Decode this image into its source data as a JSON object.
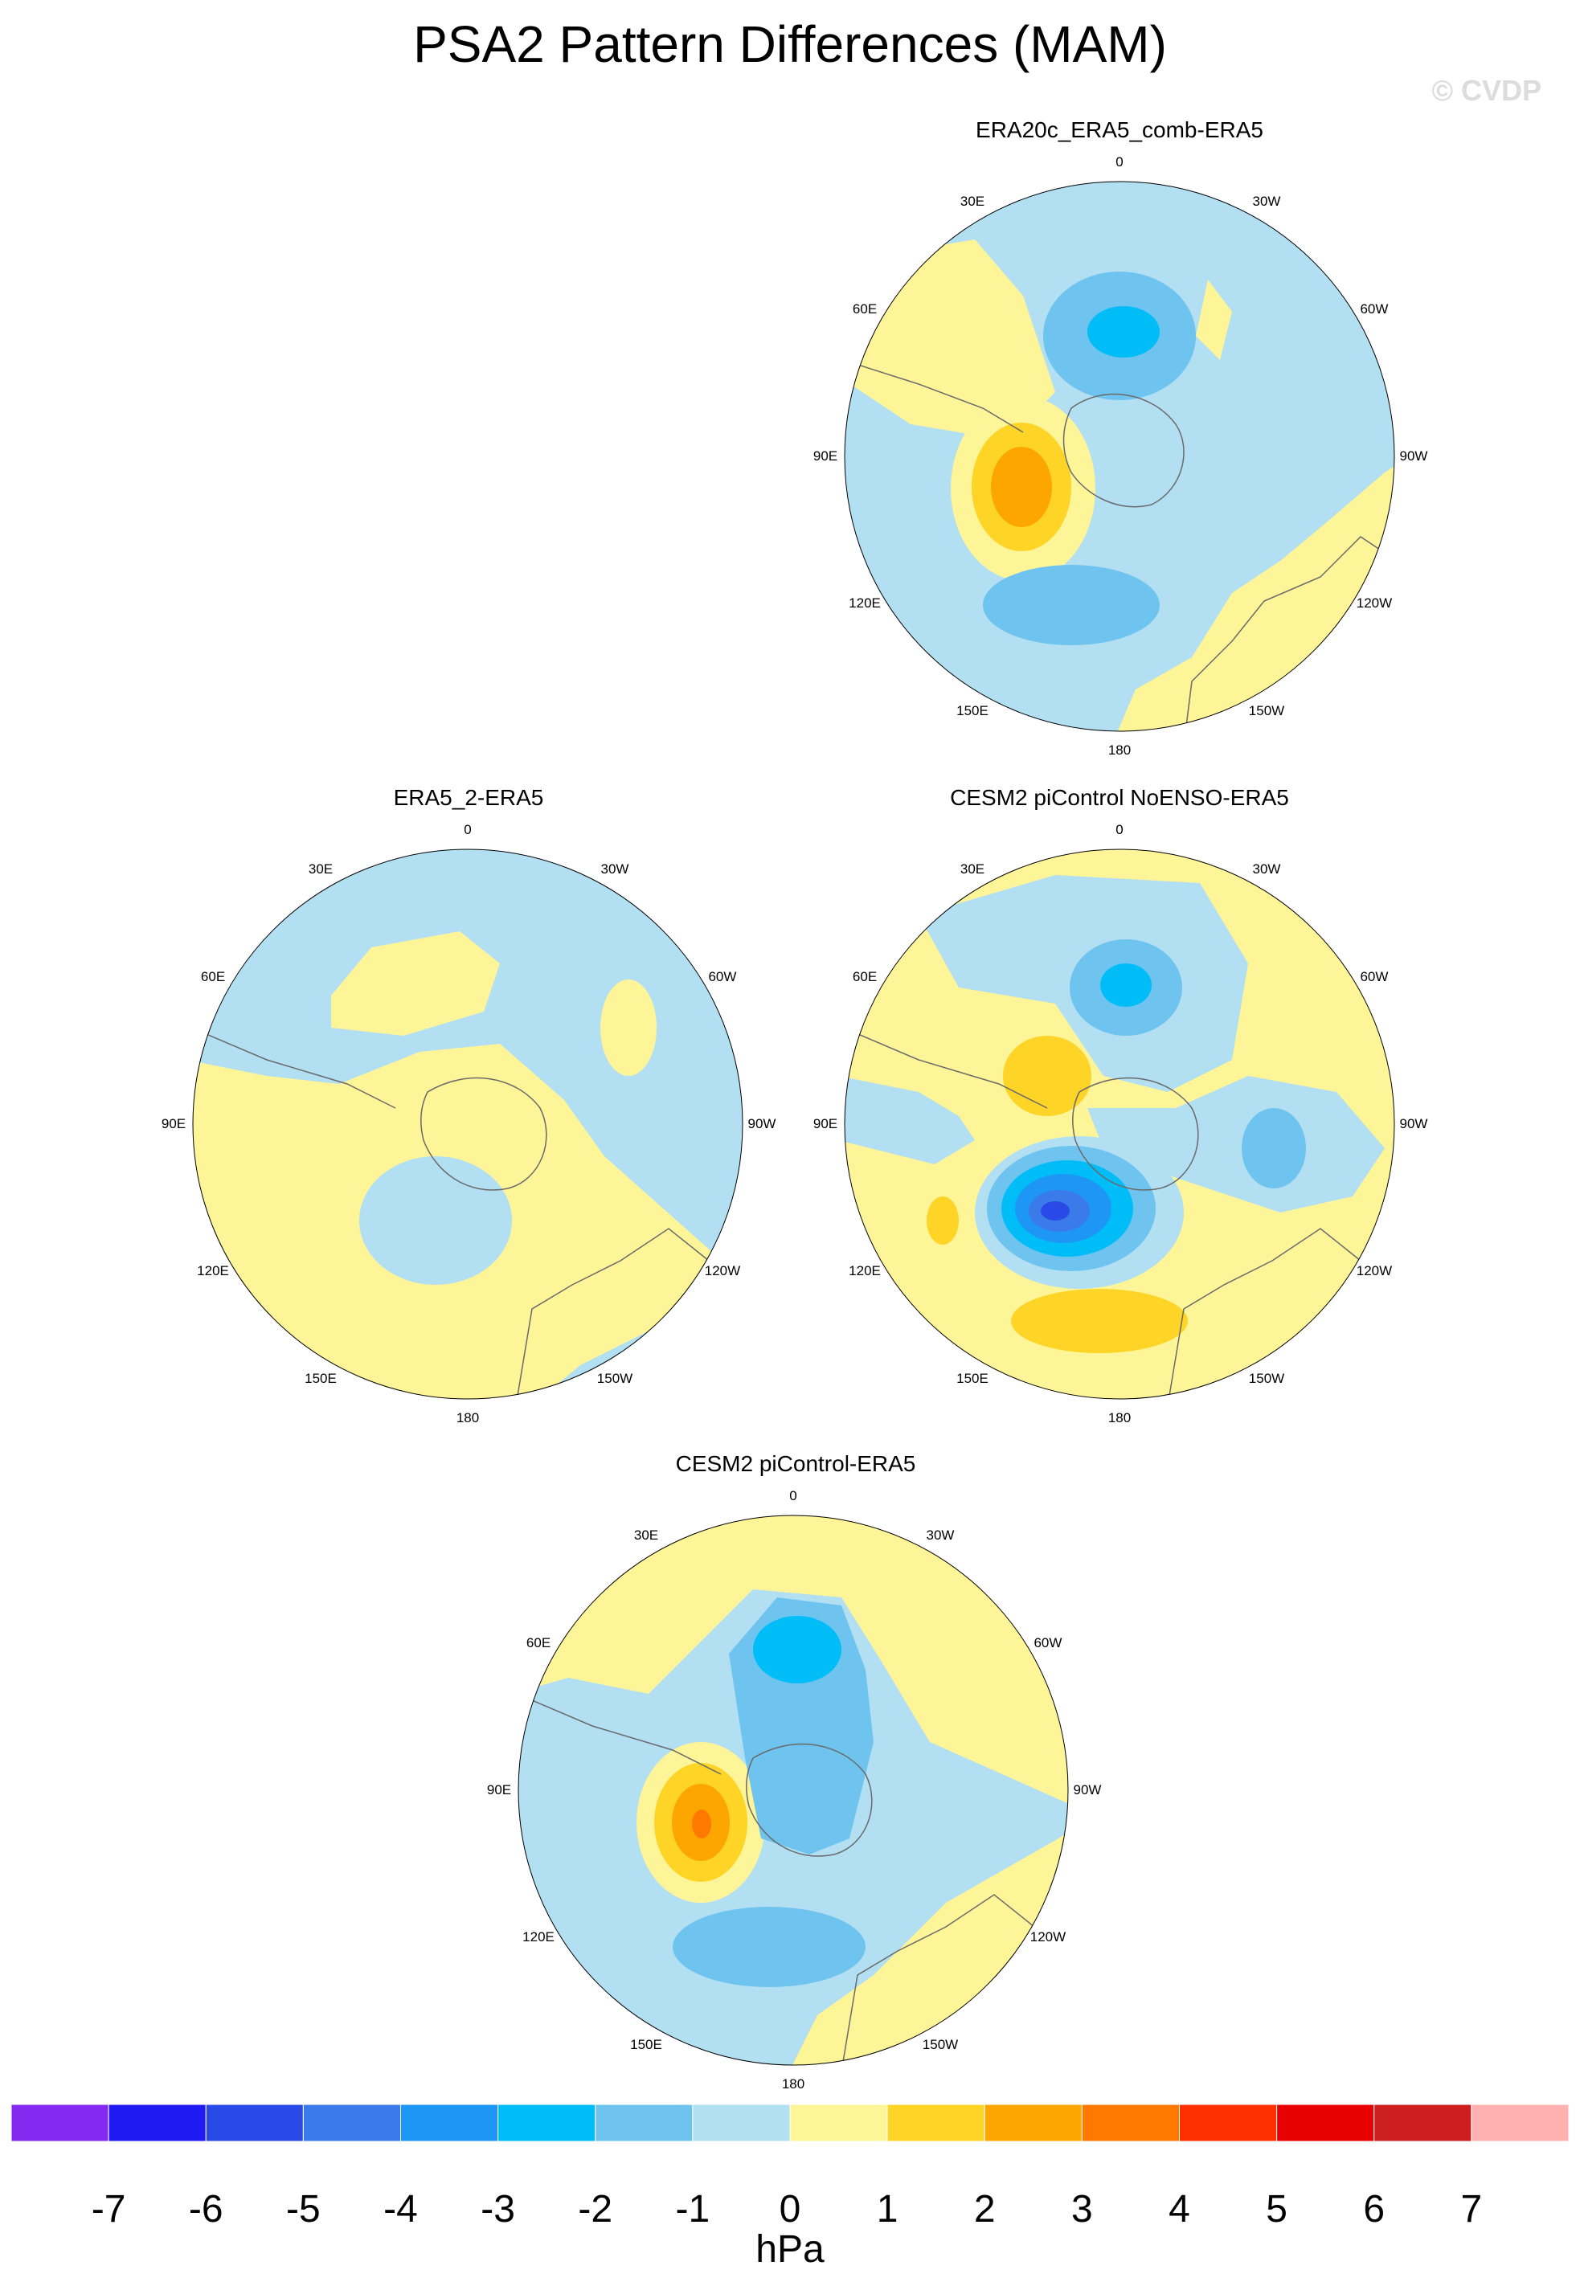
{
  "title": "PSA2 Pattern Differences (MAM)",
  "watermark": "© CVDP",
  "units": "hPa",
  "colors": {
    "neg1": "#b3dff3",
    "neg2": "#6ec4ee",
    "neg3": "#00bdf8",
    "neg4": "#1e96f5",
    "neg5": "#3a7ae9",
    "neg6": "#2a4ae8",
    "pos1": "#fef598",
    "pos2": "#fed426",
    "pos3": "#fea600",
    "pos4": "#ff7800",
    "coast": "#6a6a6a"
  },
  "colorbar": {
    "colors": [
      "#8329f0",
      "#1f1af4",
      "#2a4ae8",
      "#3a7ae9",
      "#1e96f5",
      "#00bdf8",
      "#6ec4ee",
      "#b3dff3",
      "#fef598",
      "#fed426",
      "#fea600",
      "#ff7800",
      "#ff3000",
      "#e90000",
      "#cd1f1f",
      "#ffb1b1"
    ],
    "labels": [
      "-7",
      "-6",
      "-5",
      "-4",
      "-3",
      "-2",
      "-1",
      "0",
      "1",
      "2",
      "3",
      "4",
      "5",
      "6",
      "7"
    ]
  },
  "longitude_labels": [
    "0",
    "30E",
    "60E",
    "90E",
    "120E",
    "150E",
    "180",
    "150W",
    "120W",
    "90W",
    "60W",
    "30W"
  ],
  "panels": [
    {
      "id": "p1",
      "title": "ERA20c_ERA5_comb-ERA5"
    },
    {
      "id": "p2",
      "title": "ERA5_2-ERA5"
    },
    {
      "id": "p3",
      "title": "CESM2 piControl NoENSO-ERA5"
    },
    {
      "id": "p4",
      "title": "CESM2 piControl-ERA5"
    }
  ]
}
